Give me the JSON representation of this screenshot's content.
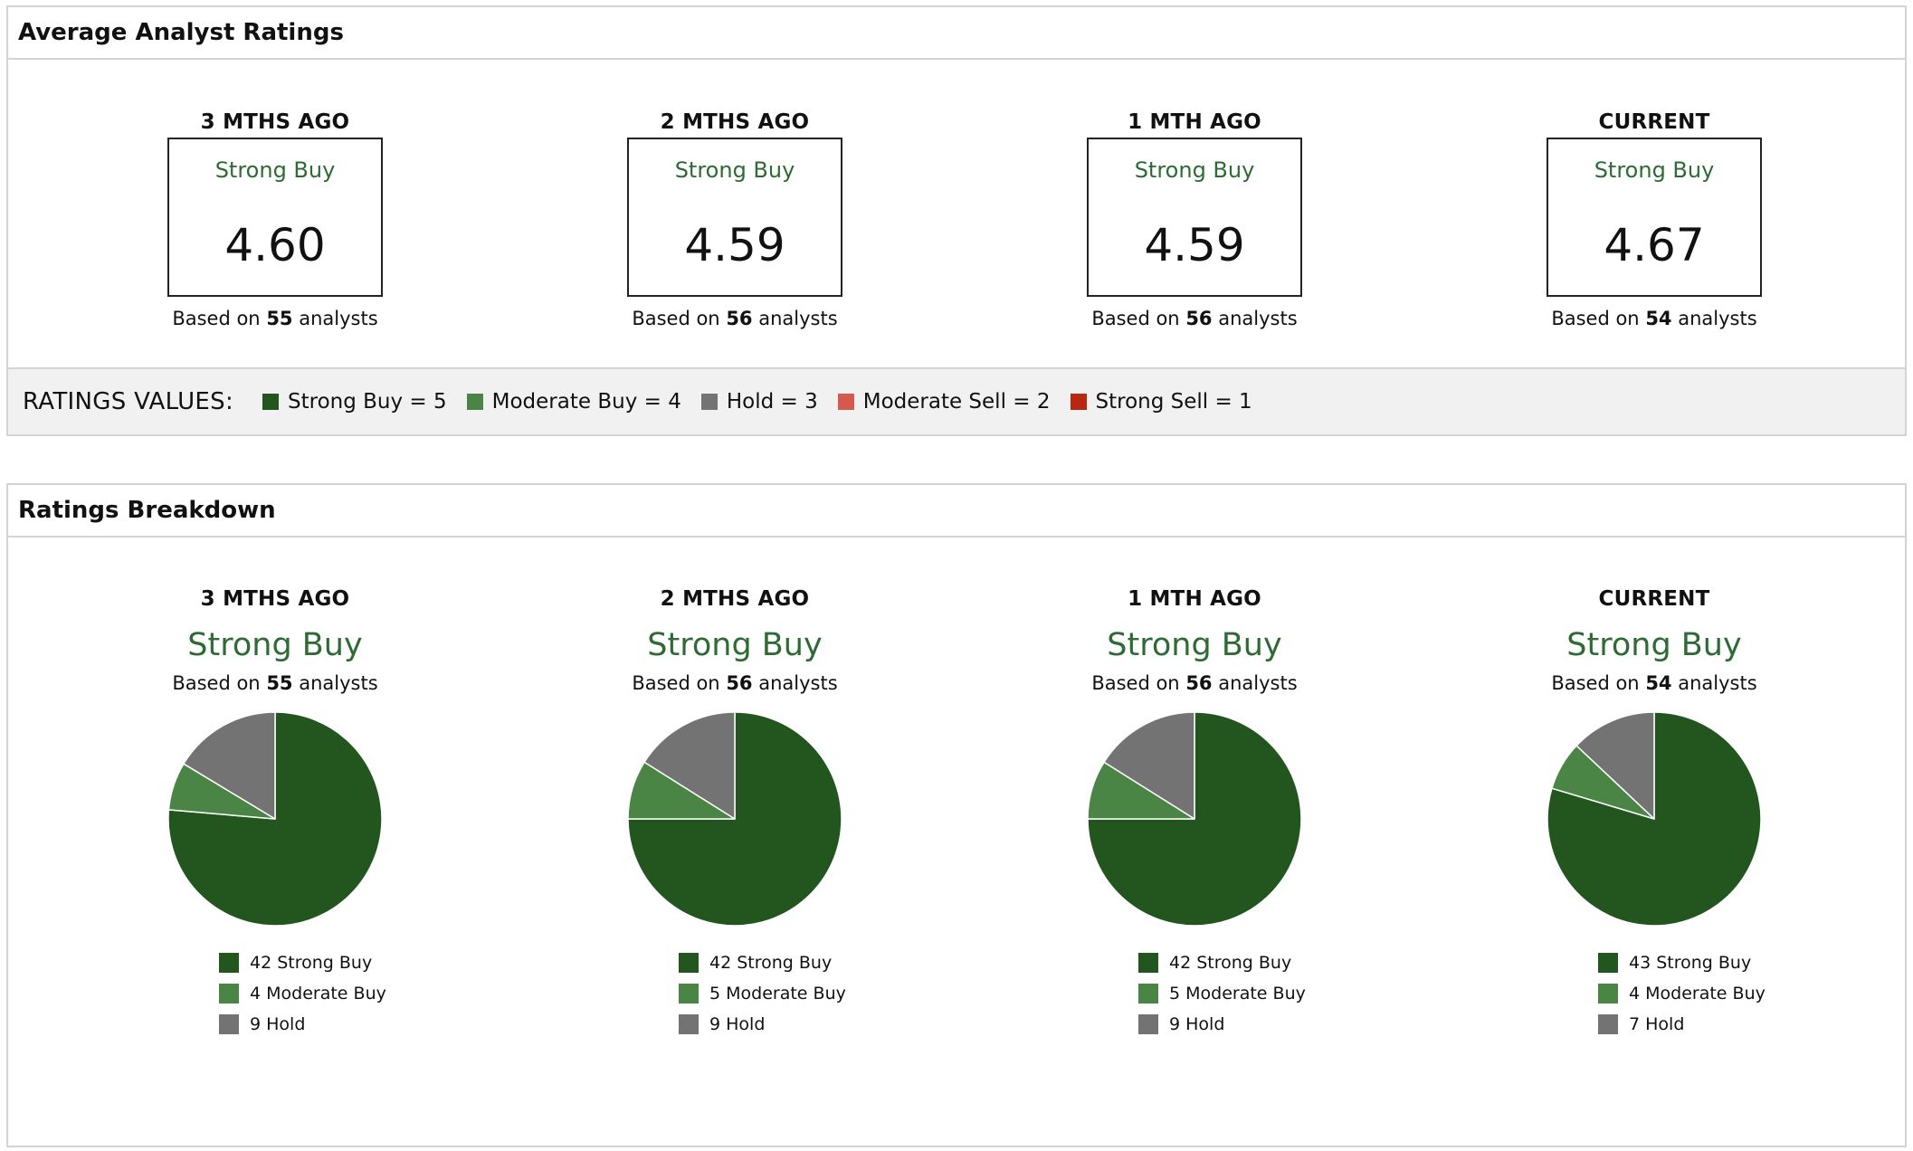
{
  "colors": {
    "strong_buy": "#22561e",
    "moderate_buy": "#4a8545",
    "hold": "#737373",
    "moderate_sell": "#d35a4d",
    "strong_sell": "#b8270f",
    "rating_text": "#2e6b34"
  },
  "average_panel": {
    "title": "Average Analyst Ratings",
    "periods": [
      {
        "label": "3 MTHS AGO",
        "rating": "Strong Buy",
        "score": "4.60",
        "based_prefix": "Based on",
        "analysts": "55",
        "based_suffix": "analysts"
      },
      {
        "label": "2 MTHS AGO",
        "rating": "Strong Buy",
        "score": "4.59",
        "based_prefix": "Based on",
        "analysts": "56",
        "based_suffix": "analysts"
      },
      {
        "label": "1 MTH AGO",
        "rating": "Strong Buy",
        "score": "4.59",
        "based_prefix": "Based on",
        "analysts": "56",
        "based_suffix": "analysts"
      },
      {
        "label": "CURRENT",
        "rating": "Strong Buy",
        "score": "4.67",
        "based_prefix": "Based on",
        "analysts": "54",
        "based_suffix": "analysts"
      }
    ],
    "ratings_values": {
      "title": "RATINGS VALUES:",
      "items": [
        {
          "label": "Strong Buy = 5",
          "color_key": "strong_buy"
        },
        {
          "label": "Moderate Buy = 4",
          "color_key": "moderate_buy"
        },
        {
          "label": "Hold = 3",
          "color_key": "hold"
        },
        {
          "label": "Moderate Sell = 2",
          "color_key": "moderate_sell"
        },
        {
          "label": "Strong Sell = 1",
          "color_key": "strong_sell"
        }
      ]
    }
  },
  "breakdown_panel": {
    "title": "Ratings Breakdown",
    "periods": [
      {
        "label": "3 MTHS AGO",
        "rating": "Strong Buy",
        "based_prefix": "Based on",
        "analysts": "55",
        "based_suffix": "analysts",
        "legend": [
          "42 Strong Buy",
          "4 Moderate Buy",
          "9 Hold"
        ]
      },
      {
        "label": "2 MTHS AGO",
        "rating": "Strong Buy",
        "based_prefix": "Based on",
        "analysts": "56",
        "based_suffix": "analysts",
        "legend": [
          "42 Strong Buy",
          "5 Moderate Buy",
          "9 Hold"
        ]
      },
      {
        "label": "1 MTH AGO",
        "rating": "Strong Buy",
        "based_prefix": "Based on",
        "analysts": "56",
        "based_suffix": "analysts",
        "legend": [
          "42 Strong Buy",
          "5 Moderate Buy",
          "9 Hold"
        ]
      },
      {
        "label": "CURRENT",
        "rating": "Strong Buy",
        "based_prefix": "Based on",
        "analysts": "54",
        "based_suffix": "analysts",
        "legend": [
          "43 Strong Buy",
          "4 Moderate Buy",
          "7 Hold"
        ]
      }
    ]
  },
  "chart_data": [
    {
      "type": "pie",
      "categories": [
        "Strong Buy",
        "Moderate Buy",
        "Hold"
      ],
      "values": [
        42,
        4,
        9
      ]
    },
    {
      "type": "pie",
      "categories": [
        "Strong Buy",
        "Moderate Buy",
        "Hold"
      ],
      "values": [
        42,
        5,
        9
      ]
    },
    {
      "type": "pie",
      "categories": [
        "Strong Buy",
        "Moderate Buy",
        "Hold"
      ],
      "values": [
        42,
        5,
        9
      ]
    },
    {
      "type": "pie",
      "categories": [
        "Strong Buy",
        "Moderate Buy",
        "Hold"
      ],
      "values": [
        43,
        4,
        7
      ]
    }
  ]
}
